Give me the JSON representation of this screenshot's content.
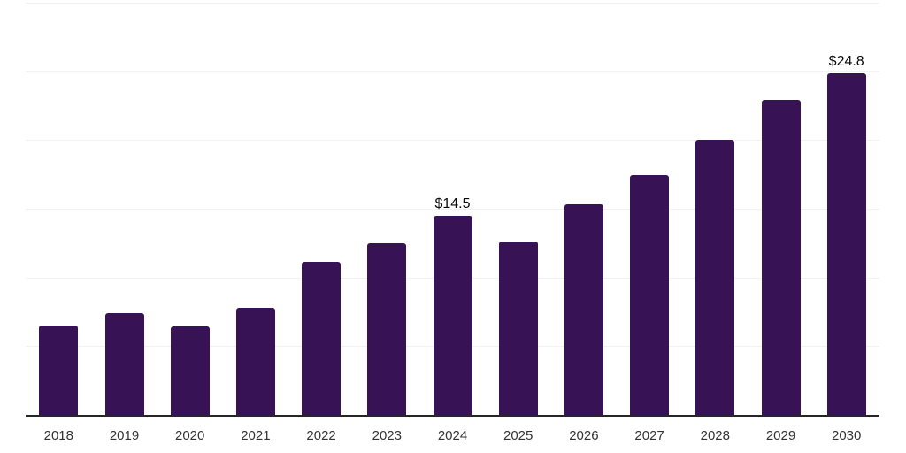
{
  "chart": {
    "background_color": "#ffffff",
    "bar_color": "#371254",
    "gridline_color": "#f2f2f2",
    "axis_line_color": "#262626",
    "tick_label_color": "#333333",
    "value_label_color": "#0a0a0a"
  },
  "chart_data": {
    "type": "bar",
    "categories": [
      "2018",
      "2019",
      "2020",
      "2021",
      "2022",
      "2023",
      "2024",
      "2025",
      "2026",
      "2027",
      "2028",
      "2029",
      "2030"
    ],
    "values": [
      6.5,
      7.4,
      6.4,
      7.8,
      11.1,
      12.5,
      14.5,
      12.6,
      15.3,
      17.4,
      20.0,
      22.9,
      24.8
    ],
    "value_labels": {
      "2024": "$14.5",
      "2030": "$24.8"
    },
    "ylim": [
      0,
      30
    ],
    "gridline_step": 5,
    "grid": "horizontal",
    "legend": "none",
    "y_tick_labels_shown": false
  }
}
